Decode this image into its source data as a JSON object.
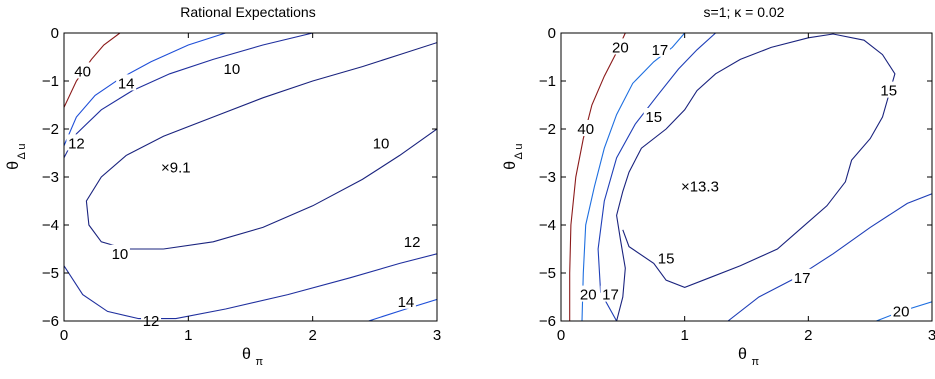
{
  "chart_data": [
    {
      "type": "contour",
      "title": "Rational Expectations",
      "xlabel": "θ",
      "xlabel_sub": "π",
      "ylabel": "θ",
      "ylabel_sub": "Δ u",
      "xlim": [
        0,
        3
      ],
      "ylim": [
        -6,
        0
      ],
      "xticks": [
        "0",
        "1",
        "2",
        "3"
      ],
      "yticks": [
        "0",
        "−1",
        "−2",
        "−3",
        "−4",
        "−5",
        "−6"
      ],
      "colors": {
        "40": "#8b1a1a",
        "14": "#1f4fd8",
        "12": "#1f2f9e",
        "10": "#1a237e"
      },
      "contours": [
        {
          "level": "40",
          "points": [
            [
              0.0,
              -1.55
            ],
            [
              0.1,
              -1.0
            ],
            [
              0.22,
              -0.55
            ],
            [
              0.32,
              -0.25
            ],
            [
              0.45,
              0.0
            ]
          ]
        },
        {
          "level": "14",
          "points": [
            [
              0.0,
              -2.35
            ],
            [
              0.1,
              -1.75
            ],
            [
              0.25,
              -1.3
            ],
            [
              0.45,
              -0.95
            ],
            [
              0.7,
              -0.6
            ],
            [
              1.0,
              -0.25
            ],
            [
              1.3,
              0.0
            ]
          ]
        },
        {
          "level": "12",
          "points": [
            [
              0.0,
              -2.6
            ],
            [
              0.1,
              -2.1
            ],
            [
              0.3,
              -1.6
            ],
            [
              0.55,
              -1.2
            ],
            [
              0.85,
              -0.85
            ],
            [
              1.2,
              -0.55
            ],
            [
              1.6,
              -0.25
            ],
            [
              2.0,
              0.0
            ]
          ]
        },
        {
          "level": "10",
          "points": [
            [
              0.8,
              -4.5
            ],
            [
              0.5,
              -4.5
            ],
            [
              0.3,
              -4.35
            ],
            [
              0.2,
              -4.0
            ],
            [
              0.18,
              -3.5
            ],
            [
              0.3,
              -3.0
            ],
            [
              0.5,
              -2.55
            ],
            [
              0.8,
              -2.15
            ],
            [
              1.2,
              -1.75
            ],
            [
              1.6,
              -1.35
            ],
            [
              2.0,
              -1.0
            ],
            [
              2.4,
              -0.7
            ],
            [
              2.7,
              -0.45
            ],
            [
              3.0,
              -0.2
            ]
          ]
        },
        {
          "level": "10",
          "points": [
            [
              0.8,
              -4.5
            ],
            [
              1.2,
              -4.35
            ],
            [
              1.6,
              -4.05
            ],
            [
              2.0,
              -3.6
            ],
            [
              2.4,
              -3.05
            ],
            [
              2.7,
              -2.55
            ],
            [
              3.0,
              -2.0
            ]
          ]
        },
        {
          "level": "12",
          "points": [
            [
              0.0,
              -4.85
            ],
            [
              0.15,
              -5.45
            ],
            [
              0.35,
              -5.8
            ],
            [
              0.6,
              -5.95
            ],
            [
              0.9,
              -5.95
            ],
            [
              1.3,
              -5.75
            ],
            [
              1.8,
              -5.45
            ],
            [
              2.3,
              -5.1
            ],
            [
              2.7,
              -4.8
            ],
            [
              3.0,
              -4.6
            ]
          ]
        },
        {
          "level": "14",
          "points": [
            [
              2.45,
              -6.0
            ],
            [
              2.75,
              -5.75
            ],
            [
              3.0,
              -5.55
            ]
          ]
        }
      ],
      "labels": [
        {
          "text": "40",
          "x": 0.15,
          "y": -0.8
        },
        {
          "text": "14",
          "x": 0.5,
          "y": -1.05
        },
        {
          "text": "12",
          "x": 0.1,
          "y": -2.3
        },
        {
          "text": "10",
          "x": 1.35,
          "y": -0.75
        },
        {
          "text": "10",
          "x": 2.55,
          "y": -2.3
        },
        {
          "text": "10",
          "x": 0.45,
          "y": -4.6
        },
        {
          "text": "12",
          "x": 2.8,
          "y": -4.35
        },
        {
          "text": "12",
          "x": 0.7,
          "y": -6.0
        },
        {
          "text": "14",
          "x": 2.75,
          "y": -5.6
        }
      ],
      "marker": {
        "x": 0.78,
        "y": -2.8,
        "text": "×9.1"
      }
    },
    {
      "type": "contour",
      "title": "s=1; κ = 0.02",
      "xlabel": "θ",
      "xlabel_sub": "π",
      "ylabel": "θ",
      "ylabel_sub": "Δ u",
      "xlim": [
        0,
        3
      ],
      "ylim": [
        -6,
        0
      ],
      "xticks": [
        "0",
        "1",
        "2",
        "3"
      ],
      "yticks": [
        "0",
        "−1",
        "−2",
        "−3",
        "−4",
        "−5",
        "−6"
      ],
      "colors": {
        "40": "#8b1a1a",
        "20": "#1e6fe0",
        "17": "#1f3fb8",
        "15": "#1a237e"
      },
      "contours": [
        {
          "level": "40",
          "points": [
            [
              0.07,
              -6.0
            ],
            [
              0.07,
              -5.0
            ],
            [
              0.08,
              -4.0
            ],
            [
              0.12,
              -3.0
            ],
            [
              0.18,
              -2.2
            ],
            [
              0.25,
              -1.5
            ],
            [
              0.35,
              -0.9
            ],
            [
              0.45,
              -0.4
            ],
            [
              0.52,
              0.0
            ]
          ]
        },
        {
          "level": "20",
          "points": [
            [
              0.17,
              -6.0
            ],
            [
              0.18,
              -5.0
            ],
            [
              0.2,
              -4.0
            ],
            [
              0.27,
              -3.2
            ],
            [
              0.35,
              -2.4
            ],
            [
              0.45,
              -1.7
            ],
            [
              0.58,
              -1.05
            ],
            [
              0.75,
              -0.6
            ],
            [
              0.9,
              -0.3
            ],
            [
              1.0,
              0.0
            ]
          ]
        },
        {
          "level": "17",
          "points": [
            [
              0.45,
              -6.0
            ],
            [
              0.32,
              -5.4
            ],
            [
              0.3,
              -4.5
            ],
            [
              0.35,
              -3.5
            ],
            [
              0.45,
              -2.6
            ],
            [
              0.6,
              -1.9
            ],
            [
              0.78,
              -1.3
            ],
            [
              0.95,
              -0.75
            ],
            [
              1.1,
              -0.35
            ],
            [
              1.25,
              0.0
            ]
          ]
        },
        {
          "level": "15",
          "points": [
            [
              0.45,
              -6.0
            ],
            [
              0.5,
              -5.5
            ],
            [
              0.52,
              -4.9
            ],
            [
              0.48,
              -4.3
            ],
            [
              0.45,
              -3.8
            ],
            [
              0.5,
              -3.3
            ],
            [
              0.55,
              -2.9
            ],
            [
              0.65,
              -2.4
            ],
            [
              0.85,
              -2.0
            ],
            [
              1.0,
              -1.6
            ],
            [
              1.1,
              -1.2
            ],
            [
              1.25,
              -0.85
            ],
            [
              1.45,
              -0.55
            ],
            [
              1.7,
              -0.3
            ],
            [
              2.0,
              -0.1
            ],
            [
              2.2,
              -0.02
            ],
            [
              2.45,
              -0.15
            ],
            [
              2.6,
              -0.45
            ],
            [
              2.7,
              -0.85
            ],
            [
              2.65,
              -1.3
            ],
            [
              2.6,
              -1.75
            ],
            [
              2.5,
              -2.2
            ],
            [
              2.35,
              -2.65
            ],
            [
              2.3,
              -3.1
            ],
            [
              2.15,
              -3.6
            ],
            [
              1.95,
              -4.05
            ],
            [
              1.75,
              -4.5
            ],
            [
              1.45,
              -4.85
            ],
            [
              1.2,
              -5.1
            ],
            [
              1.0,
              -5.3
            ],
            [
              0.85,
              -5.15
            ],
            [
              0.75,
              -4.8
            ],
            [
              0.55,
              -4.45
            ],
            [
              0.5,
              -4.1
            ]
          ]
        },
        {
          "level": "17",
          "points": [
            [
              1.35,
              -6.0
            ],
            [
              1.6,
              -5.5
            ],
            [
              1.9,
              -5.1
            ],
            [
              2.2,
              -4.6
            ],
            [
              2.5,
              -4.05
            ],
            [
              2.8,
              -3.55
            ],
            [
              3.0,
              -3.35
            ]
          ]
        },
        {
          "level": "20",
          "points": [
            [
              2.55,
              -6.0
            ],
            [
              2.75,
              -5.8
            ],
            [
              3.0,
              -5.6
            ]
          ]
        }
      ],
      "labels": [
        {
          "text": "40",
          "x": 0.2,
          "y": -2.0
        },
        {
          "text": "20",
          "x": 0.48,
          "y": -0.3
        },
        {
          "text": "17",
          "x": 0.8,
          "y": -0.35
        },
        {
          "text": "15",
          "x": 0.75,
          "y": -1.75
        },
        {
          "text": "15",
          "x": 2.65,
          "y": -1.2
        },
        {
          "text": "15",
          "x": 0.85,
          "y": -4.7
        },
        {
          "text": "20",
          "x": 0.22,
          "y": -5.45
        },
        {
          "text": "17",
          "x": 0.4,
          "y": -5.45
        },
        {
          "text": "17",
          "x": 1.95,
          "y": -5.1
        },
        {
          "text": "20",
          "x": 2.75,
          "y": -5.8
        }
      ],
      "marker": {
        "x": 0.97,
        "y": -3.2,
        "text": "×13.3"
      }
    }
  ]
}
